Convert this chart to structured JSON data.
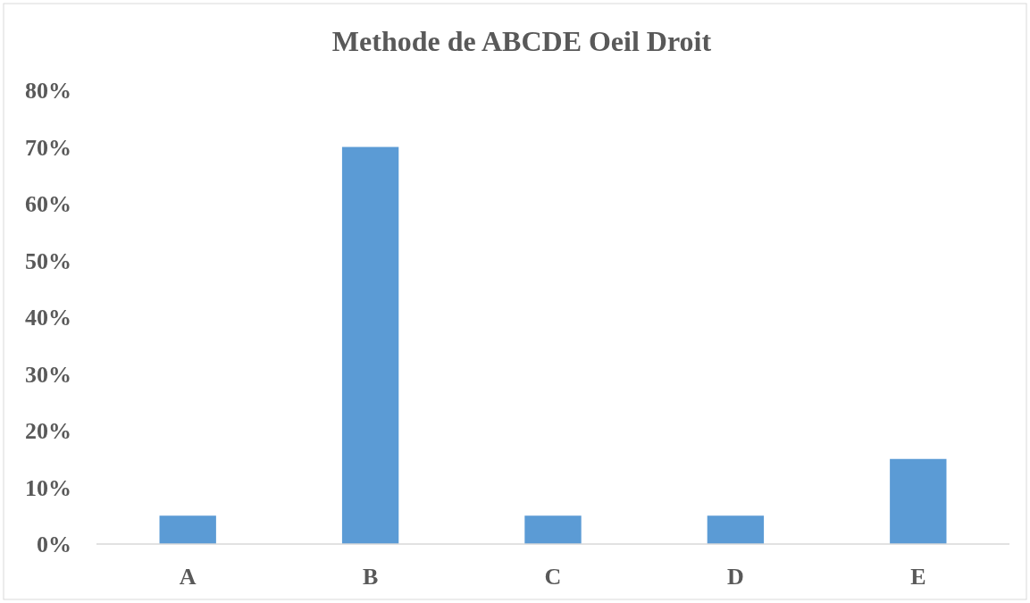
{
  "chart_data": {
    "type": "bar",
    "title": "Methode de  ABCDE Oeil Droit",
    "categories": [
      "A",
      "B",
      "C",
      "D",
      "E"
    ],
    "values": [
      5,
      70,
      5,
      5,
      15
    ],
    "color": "#5b9bd5",
    "ylim": [
      0,
      80
    ],
    "yticks": [
      {
        "value": 0,
        "label": "0%"
      },
      {
        "value": 10,
        "label": "10%"
      },
      {
        "value": 20,
        "label": "20%"
      },
      {
        "value": 30,
        "label": "30%"
      },
      {
        "value": 40,
        "label": "40%"
      },
      {
        "value": 50,
        "label": "50%"
      },
      {
        "value": 60,
        "label": "60%"
      },
      {
        "value": 70,
        "label": "70%"
      },
      {
        "value": 80,
        "label": "80%"
      }
    ],
    "grid": false
  }
}
